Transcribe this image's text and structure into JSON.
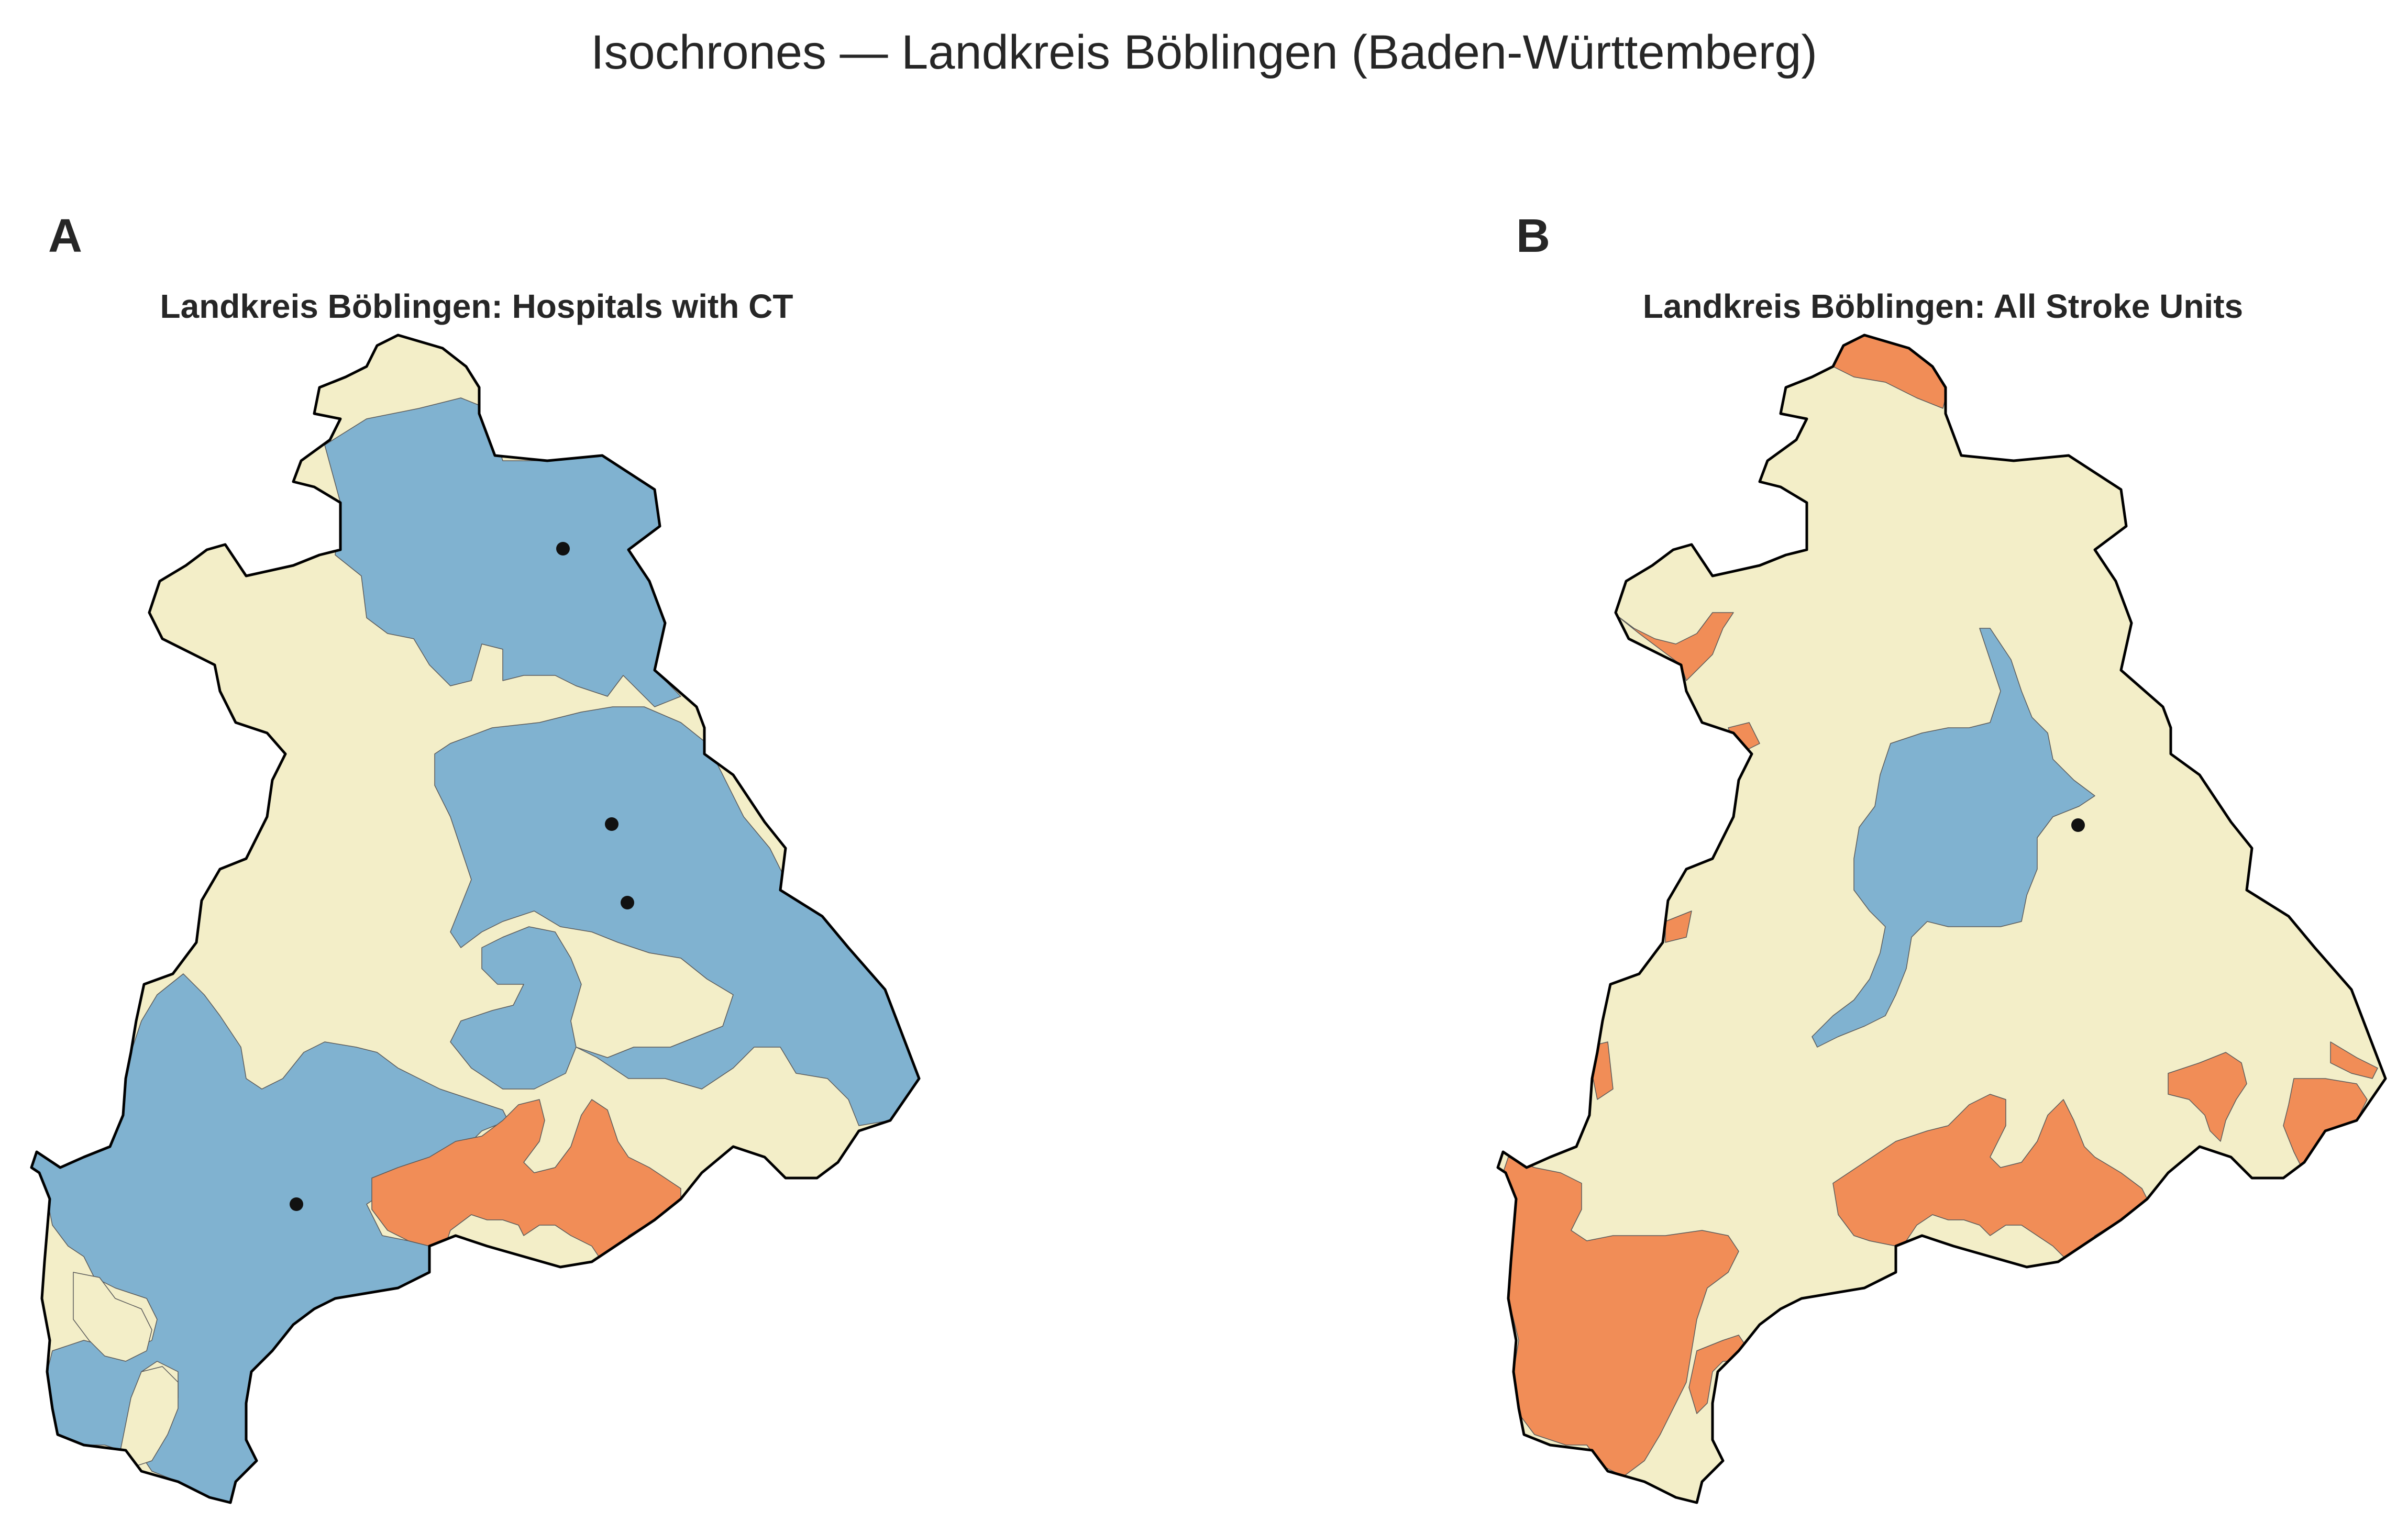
{
  "figure": {
    "title": "Isochrones — Landkreis Böblingen (Baden-Württemberg)"
  },
  "colors": {
    "short_travel": "#80b2d0",
    "medium_travel": "#f3eec8",
    "long_travel": "#f18d57",
    "border": "#000000",
    "facility": "#111111"
  },
  "panels": [
    {
      "letter": "A",
      "title": "Landkreis Böblingen: Hospitals with CT",
      "facilities_shown": 4
    },
    {
      "letter": "B",
      "title": "Landkreis Böblingen: All Stroke Units",
      "facilities_shown": 1
    }
  ]
}
